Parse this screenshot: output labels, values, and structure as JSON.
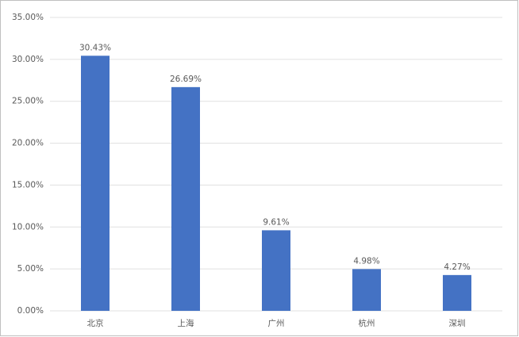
{
  "chart_data": {
    "type": "bar",
    "categories": [
      "北京",
      "上海",
      "广州",
      "杭州",
      "深圳"
    ],
    "values": [
      30.43,
      26.69,
      9.61,
      4.98,
      4.27
    ],
    "value_labels": [
      "30.43%",
      "26.69%",
      "9.61%",
      "4.98%",
      "4.27%"
    ],
    "color": "#4472c4",
    "ylim": [
      0,
      35
    ],
    "yticks": [
      {
        "value": 0,
        "label": "0.00%"
      },
      {
        "value": 5,
        "label": "5.00%"
      },
      {
        "value": 10,
        "label": "10.00%"
      },
      {
        "value": 15,
        "label": "15.00%"
      },
      {
        "value": 20,
        "label": "20.00%"
      },
      {
        "value": 25,
        "label": "25.00%"
      },
      {
        "value": 30,
        "label": "30.00%"
      },
      {
        "value": 35,
        "label": "35.00%"
      }
    ],
    "grid": true
  }
}
